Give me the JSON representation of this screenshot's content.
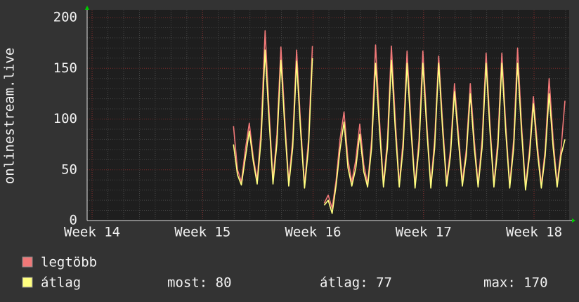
{
  "chart_data": {
    "type": "line",
    "ylabel": "onlinestream.live",
    "xlim": [
      13.955,
      18.318
    ],
    "xticks": [
      {
        "value": 14,
        "label": "Week 14"
      },
      {
        "value": 15,
        "label": "Week 15"
      },
      {
        "value": 16,
        "label": "Week 16"
      },
      {
        "value": 17,
        "label": "Week 17"
      },
      {
        "value": 18,
        "label": "Week 18"
      }
    ],
    "ylim": [
      0,
      200
    ],
    "yticks": [
      0,
      50,
      100,
      150,
      200
    ],
    "grid": true,
    "x": [
      15.28,
      15.316,
      15.351,
      15.387,
      15.423,
      15.459,
      15.494,
      15.53,
      15.566,
      15.601,
      15.637,
      15.673,
      15.709,
      15.744,
      15.78,
      15.816,
      15.851,
      15.887,
      15.923,
      15.959,
      15.994,
      16.03,
      16.066,
      16.101,
      16.137,
      16.173,
      16.209,
      16.244,
      16.28,
      16.316,
      16.351,
      16.387,
      16.423,
      16.459,
      16.494,
      16.53,
      16.566,
      16.601,
      16.637,
      16.673,
      16.709,
      16.744,
      16.78,
      16.816,
      16.851,
      16.887,
      16.923,
      16.959,
      16.994,
      17.03,
      17.066,
      17.101,
      17.137,
      17.173,
      17.209,
      17.244,
      17.28,
      17.316,
      17.351,
      17.387,
      17.423,
      17.459,
      17.494,
      17.53,
      17.566,
      17.601,
      17.637,
      17.673,
      17.709,
      17.744,
      17.78,
      17.816,
      17.851,
      17.887,
      17.923,
      17.959,
      17.994,
      18.03,
      18.066,
      18.101,
      18.137,
      18.173,
      18.209,
      18.244,
      18.28
    ],
    "series": [
      {
        "name": "legtöbb",
        "color": "#f07878",
        "values": [
          93,
          50,
          38,
          70,
          96,
          62,
          40,
          90,
          187,
          110,
          40,
          85,
          171,
          100,
          38,
          80,
          168,
          95,
          35,
          80,
          172,
          null,
          null,
          17,
          25,
          12,
          40,
          80,
          107,
          60,
          38,
          60,
          95,
          55,
          36,
          80,
          173,
          100,
          36,
          80,
          172,
          100,
          36,
          80,
          167,
          95,
          35,
          80,
          167,
          95,
          35,
          80,
          162,
          95,
          38,
          70,
          135,
          85,
          38,
          70,
          135,
          80,
          36,
          80,
          165,
          95,
          36,
          80,
          165,
          95,
          35,
          80,
          170,
          95,
          33,
          70,
          122,
          75,
          35,
          70,
          140,
          80,
          36,
          70,
          118
        ]
      },
      {
        "name": "átlag",
        "color": "#ffff80",
        "values": [
          75,
          45,
          35,
          62,
          88,
          58,
          36,
          80,
          168,
          100,
          36,
          76,
          158,
          92,
          34,
          72,
          157,
          88,
          32,
          72,
          160,
          null,
          null,
          15,
          20,
          7,
          35,
          70,
          97,
          52,
          34,
          52,
          85,
          48,
          33,
          72,
          155,
          90,
          33,
          72,
          158,
          90,
          33,
          72,
          155,
          88,
          32,
          72,
          155,
          88,
          32,
          72,
          155,
          88,
          34,
          64,
          127,
          78,
          34,
          64,
          125,
          72,
          33,
          72,
          155,
          88,
          33,
          72,
          155,
          88,
          32,
          72,
          155,
          88,
          30,
          64,
          115,
          68,
          32,
          64,
          125,
          72,
          33,
          64,
          80
        ]
      }
    ],
    "stats": [
      "most: 80",
      "átlag: 77",
      "max: 170"
    ]
  }
}
